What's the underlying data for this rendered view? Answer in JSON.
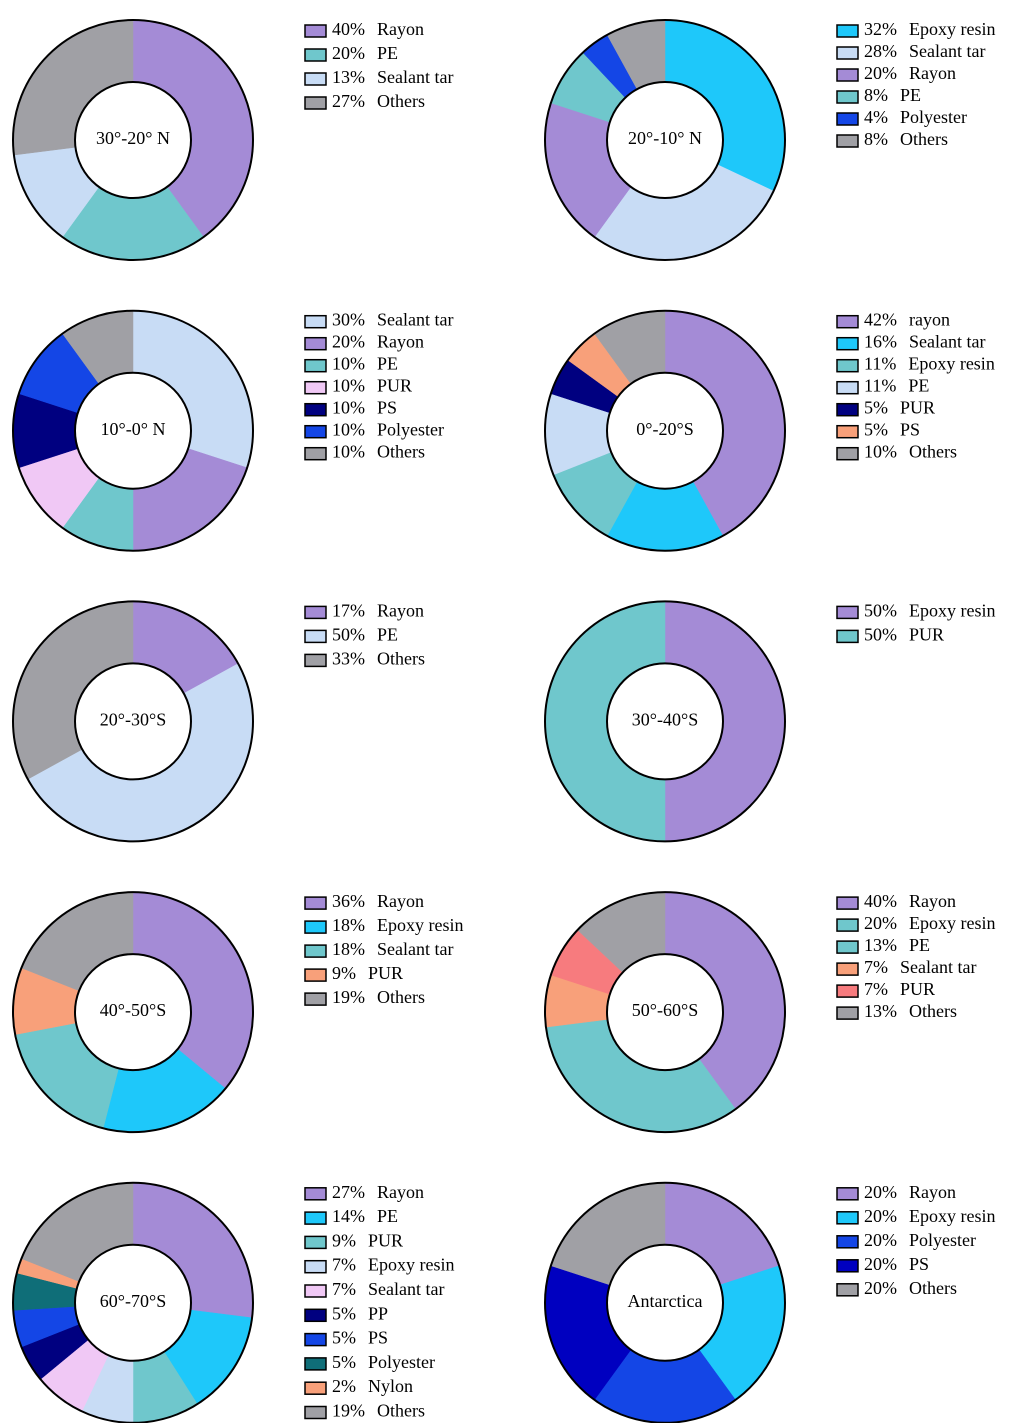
{
  "chart_data": [
    {
      "type": "pie",
      "title": "30°-20° N",
      "categories": [
        "Rayon",
        "PE",
        "Sealant tar",
        "Others"
      ],
      "values": [
        40,
        20,
        13,
        27
      ],
      "value_labels": [
        "40%",
        "20%",
        "13%",
        "27%"
      ],
      "colors": [
        "#a48bd6",
        "#6fc7cc",
        "#c8dcf5",
        "#a0a0a5"
      ]
    },
    {
      "type": "pie",
      "title": "20°-10° N",
      "categories": [
        "Epoxy resin",
        "Sealant tar",
        "Rayon",
        "PE",
        "Polyester",
        "Others"
      ],
      "values": [
        32,
        28,
        20,
        8,
        4,
        8
      ],
      "value_labels": [
        "32%",
        "28%",
        "20%",
        "8%",
        "4%",
        "8%"
      ],
      "colors": [
        "#1ec8fa",
        "#c8dcf5",
        "#a48bd6",
        "#6fc7cc",
        "#1446e6",
        "#a0a0a5"
      ]
    },
    {
      "type": "pie",
      "title": "10°-0° N",
      "categories": [
        "Sealant tar",
        "Rayon",
        "PE",
        "PUR",
        "PS",
        "Polyester",
        "Others"
      ],
      "values": [
        30,
        20,
        10,
        10,
        10,
        10,
        10
      ],
      "value_labels": [
        "30%",
        "20%",
        "10%",
        "10%",
        "10%",
        "10%",
        "10%"
      ],
      "colors": [
        "#c8dcf5",
        "#a48bd6",
        "#6fc7cc",
        "#f0c8f5",
        "#000080",
        "#1446e6",
        "#a0a0a5"
      ]
    },
    {
      "type": "pie",
      "title": "0°-20°S",
      "categories": [
        "rayon",
        "Sealant tar",
        "Epoxy resin",
        "PE",
        "PUR",
        "PS",
        "Others"
      ],
      "values": [
        42,
        16,
        11,
        11,
        5,
        5,
        10
      ],
      "value_labels": [
        "42%",
        "16%",
        "11%",
        "11%",
        "5%",
        "5%",
        "10%"
      ],
      "colors": [
        "#a48bd6",
        "#1ec8fa",
        "#6fc7cc",
        "#c8dcf5",
        "#000080",
        "#f8a07a",
        "#a0a0a5"
      ]
    },
    {
      "type": "pie",
      "title": "20°-30°S",
      "categories": [
        "Rayon",
        "PE",
        "Others"
      ],
      "values": [
        17,
        50,
        33
      ],
      "value_labels": [
        "17%",
        "50%",
        "33%"
      ],
      "colors": [
        "#a48bd6",
        "#c8dcf5",
        "#a0a0a5"
      ]
    },
    {
      "type": "pie",
      "title": "30°-40°S",
      "categories": [
        "Epoxy resin",
        "PUR"
      ],
      "values": [
        50,
        50
      ],
      "value_labels": [
        "50%",
        "50%"
      ],
      "colors": [
        "#a48bd6",
        "#6fc7cc"
      ]
    },
    {
      "type": "pie",
      "title": "40°-50°S",
      "categories": [
        "Rayon",
        "Epoxy resin",
        "Sealant tar",
        "PUR",
        "Others"
      ],
      "values": [
        36,
        18,
        18,
        9,
        19
      ],
      "value_labels": [
        "36%",
        "18%",
        "18%",
        "9%",
        "19%"
      ],
      "colors": [
        "#a48bd6",
        "#1ec8fa",
        "#6fc7cc",
        "#f8a07a",
        "#a0a0a5"
      ]
    },
    {
      "type": "pie",
      "title": "50°-60°S",
      "categories": [
        "Rayon",
        "Epoxy resin",
        "PE",
        "Sealant tar",
        "PUR",
        "Others"
      ],
      "values": [
        40,
        20,
        13,
        7,
        7,
        13
      ],
      "value_labels": [
        "40%",
        "20%",
        "13%",
        "7%",
        "7%",
        "13%"
      ],
      "colors": [
        "#a48bd6",
        "#6fc7cc",
        "#6fc7cc",
        "#f8a07a",
        "#f77b7e",
        "#a0a0a5"
      ]
    },
    {
      "type": "pie",
      "title": "60°-70°S",
      "categories": [
        "Rayon",
        "PE",
        "PUR",
        "Epoxy resin",
        "Sealant tar",
        "PP",
        "PS",
        "Polyester",
        "Nylon",
        "Others"
      ],
      "values": [
        27,
        14,
        9,
        7,
        7,
        5,
        5,
        5,
        2,
        19
      ],
      "value_labels": [
        "27%",
        "14%",
        "9%",
        "7%",
        "7%",
        "5%",
        "5%",
        "5%",
        "2%",
        "19%"
      ],
      "colors": [
        "#a48bd6",
        "#1ec8fa",
        "#6fc7cc",
        "#c8dcf5",
        "#f0c8f5",
        "#000080",
        "#1446e6",
        "#0f6e78",
        "#f8a07a",
        "#a0a0a5"
      ]
    },
    {
      "type": "pie",
      "title": "Antarctica",
      "categories": [
        "Rayon",
        "Epoxy resin",
        "Polyester",
        "PS",
        "Others"
      ],
      "values": [
        20,
        20,
        20,
        20,
        20
      ],
      "value_labels": [
        "20%",
        "20%",
        "20%",
        "20%",
        "20%"
      ],
      "colors": [
        "#a48bd6",
        "#1ec8fa",
        "#1446e6",
        "#0000c0",
        "#a0a0a5"
      ]
    }
  ]
}
